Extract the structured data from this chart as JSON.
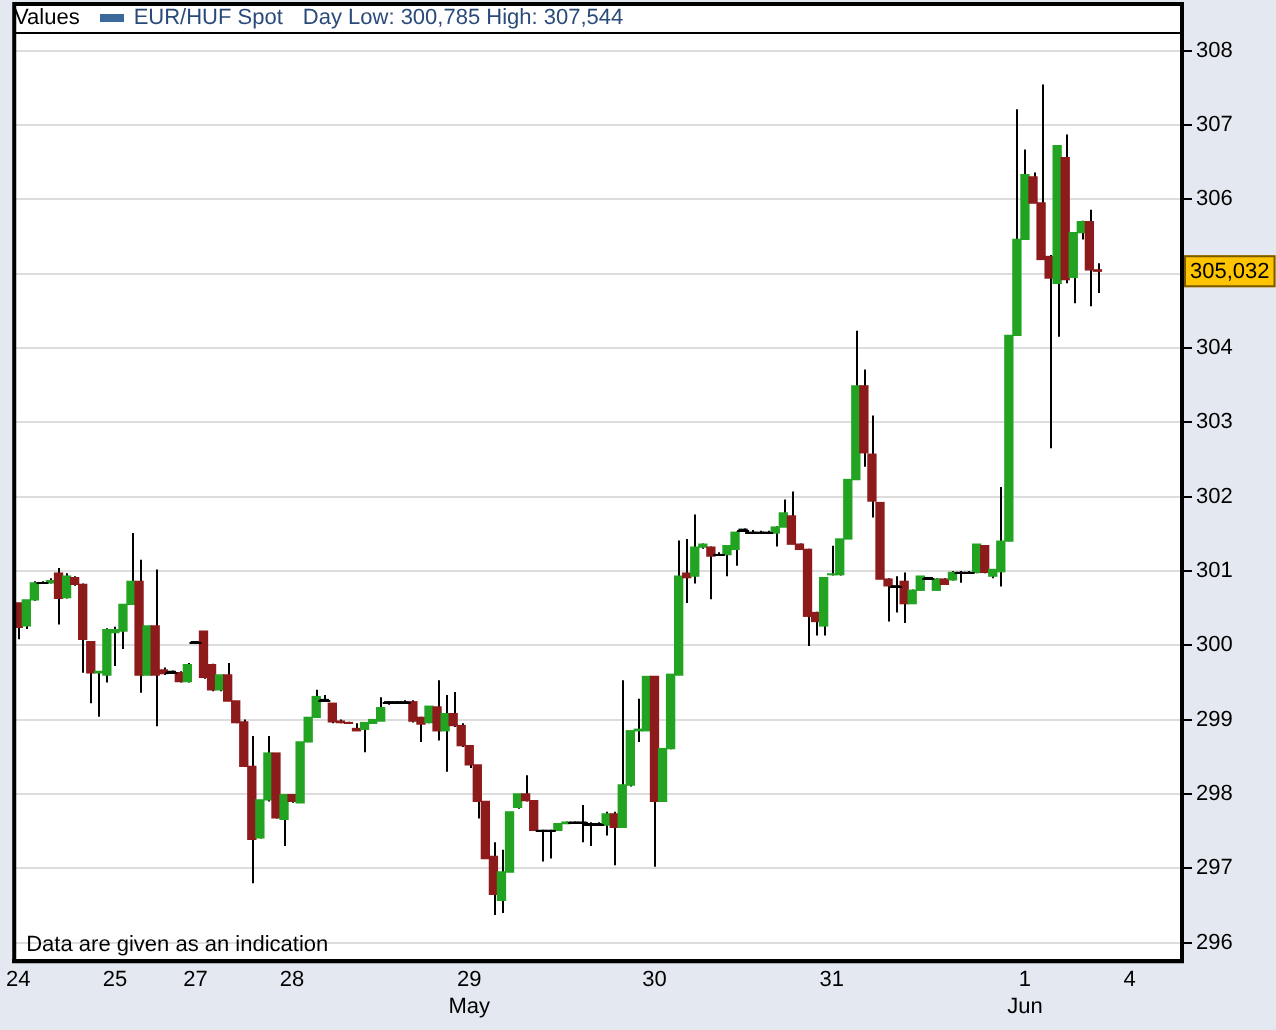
{
  "chart_data": {
    "type": "candlestick",
    "title": "Values",
    "subtitle": "Day Low: 300,785 High: 307,544",
    "legend": "top left",
    "grid": "y",
    "categories": [
      "24",
      null,
      null,
      null,
      null,
      null,
      null,
      null,
      null,
      null,
      null,
      null,
      "25",
      null,
      null,
      null,
      null,
      null,
      null,
      null,
      null,
      null,
      "27",
      null,
      null,
      null,
      null,
      null,
      null,
      null,
      null,
      null,
      null,
      null,
      "28",
      null,
      null,
      null,
      null,
      null,
      null,
      null,
      null,
      null,
      null,
      null,
      null,
      null,
      null,
      null,
      null,
      null,
      null,
      null,
      null,
      null,
      "29\nMay",
      null,
      null,
      null,
      null,
      null,
      null,
      null,
      null,
      null,
      null,
      null,
      null,
      null,
      null,
      null,
      null,
      null,
      null,
      null,
      null,
      null,
      null,
      "30",
      null,
      null,
      null,
      null,
      null,
      null,
      null,
      null,
      null,
      null,
      null,
      null,
      null,
      null,
      null,
      null,
      null,
      null,
      null,
      null,
      null,
      "31",
      null,
      null,
      null,
      null,
      null,
      null,
      null,
      null,
      null,
      null,
      null,
      null,
      null,
      null,
      null,
      null,
      null,
      null,
      null,
      null,
      null,
      null,
      null,
      "1\nJun",
      null,
      null,
      null,
      null,
      null,
      null,
      null,
      null,
      null,
      null,
      null,
      null,
      "4",
      null,
      null,
      null,
      null,
      null,
      null
    ],
    "ylim": [
      295.75,
      308.25
    ],
    "yticks": [
      296,
      297,
      298,
      299,
      300,
      301,
      302,
      303,
      304,
      {
        "value": 305,
        "label": null
      },
      306,
      307,
      308
    ],
    "annotations": [
      "Data are given as an indication"
    ],
    "series": [
      {
        "name": "EUR/HUF Spot",
        "color": "#3a6a9c",
        "ohlc": [
          [
            300.57,
            300.57,
            300.08,
            300.24
          ],
          [
            300.26,
            300.61,
            300.22,
            300.61
          ],
          [
            300.61,
            300.86,
            300.6,
            300.84
          ],
          [
            300.84,
            300.86,
            300.83,
            300.84
          ],
          [
            300.84,
            300.9,
            300.83,
            300.87
          ],
          [
            300.97,
            301.04,
            300.28,
            300.63
          ],
          [
            300.64,
            300.97,
            300.63,
            300.93
          ],
          [
            300.91,
            300.93,
            300.8,
            300.82
          ],
          [
            300.82,
            300.83,
            299.63,
            300.08
          ],
          [
            300.05,
            300.05,
            299.22,
            299.63
          ],
          [
            299.63,
            299.65,
            299.04,
            299.65
          ],
          [
            299.6,
            300.23,
            299.5,
            300.21
          ],
          [
            300.17,
            300.25,
            299.72,
            300.21
          ],
          [
            300.19,
            300.55,
            299.95,
            300.55
          ],
          [
            300.55,
            301.51,
            300.55,
            300.86
          ],
          [
            300.86,
            301.15,
            299.36,
            299.6
          ],
          [
            299.6,
            300.26,
            299.6,
            300.26
          ],
          [
            300.26,
            301.02,
            298.91,
            299.6
          ],
          [
            299.67,
            299.7,
            299.6,
            299.62
          ],
          [
            299.65,
            299.66,
            299.62,
            299.65
          ],
          [
            299.63,
            299.65,
            299.5,
            299.51
          ],
          [
            299.51,
            299.76,
            299.5,
            299.74
          ],
          [
            300.05,
            300.05,
            300.05,
            300.05
          ],
          [
            300.19,
            300.19,
            299.55,
            299.57
          ],
          [
            299.74,
            299.75,
            299.38,
            299.4
          ],
          [
            299.4,
            299.6,
            299.38,
            299.6
          ],
          [
            299.6,
            299.76,
            299.25,
            299.25
          ],
          [
            299.25,
            299.25,
            298.95,
            298.96
          ],
          [
            298.97,
            299.0,
            298.37,
            298.37
          ],
          [
            298.37,
            298.78,
            296.8,
            297.39
          ],
          [
            297.41,
            297.92,
            297.4,
            297.92
          ],
          [
            297.92,
            298.78,
            297.9,
            298.55
          ],
          [
            298.55,
            298.55,
            297.67,
            297.68
          ],
          [
            297.66,
            297.99,
            297.3,
            297.99
          ],
          [
            297.99,
            298.0,
            297.88,
            297.9
          ],
          [
            297.88,
            298.7,
            297.88,
            298.7
          ],
          [
            298.7,
            299.03,
            298.7,
            299.03
          ],
          [
            299.03,
            299.4,
            299.02,
            299.31
          ],
          [
            299.27,
            299.33,
            299.25,
            299.27
          ],
          [
            299.22,
            299.22,
            298.95,
            298.97
          ],
          [
            298.98,
            299.0,
            298.95,
            298.96
          ],
          [
            298.96,
            298.97,
            298.94,
            298.95
          ],
          [
            298.88,
            298.95,
            298.85,
            298.85
          ],
          [
            298.87,
            298.96,
            298.56,
            298.96
          ],
          [
            298.95,
            299.0,
            298.94,
            299.0
          ],
          [
            298.98,
            299.3,
            298.98,
            299.16
          ],
          [
            299.24,
            299.25,
            299.2,
            299.24
          ],
          [
            299.24,
            299.25,
            299.22,
            299.24
          ],
          [
            299.24,
            299.26,
            299.22,
            299.24
          ],
          [
            299.24,
            299.26,
            298.96,
            298.98
          ],
          [
            299.03,
            299.04,
            298.7,
            298.94
          ],
          [
            298.96,
            299.18,
            298.95,
            299.18
          ],
          [
            299.17,
            299.53,
            298.72,
            298.85
          ],
          [
            298.85,
            299.33,
            298.3,
            299.08
          ],
          [
            299.08,
            299.37,
            298.9,
            298.92
          ],
          [
            298.92,
            298.95,
            298.63,
            298.65
          ],
          [
            298.65,
            298.65,
            298.35,
            298.39
          ],
          [
            298.39,
            298.39,
            297.67,
            297.9
          ],
          [
            297.9,
            297.9,
            297.13,
            297.13
          ],
          [
            297.16,
            297.35,
            296.37,
            296.65
          ],
          [
            296.57,
            297.25,
            296.4,
            296.95
          ],
          [
            296.95,
            297.76,
            296.95,
            297.76
          ],
          [
            297.82,
            298.0,
            297.8,
            298.0
          ],
          [
            298.0,
            298.25,
            297.9,
            297.91
          ],
          [
            297.91,
            297.92,
            297.5,
            297.51
          ],
          [
            297.51,
            297.52,
            297.09,
            297.51
          ],
          [
            297.51,
            297.52,
            297.13,
            297.51
          ],
          [
            297.51,
            297.6,
            297.5,
            297.6
          ],
          [
            297.6,
            297.63,
            297.6,
            297.62
          ],
          [
            297.62,
            297.63,
            297.6,
            297.62
          ],
          [
            297.62,
            297.85,
            297.35,
            297.62
          ],
          [
            297.6,
            297.62,
            297.3,
            297.6
          ],
          [
            297.6,
            297.62,
            297.58,
            297.6
          ],
          [
            297.58,
            297.76,
            297.44,
            297.73
          ],
          [
            297.73,
            297.76,
            297.04,
            297.55
          ],
          [
            297.55,
            299.53,
            297.55,
            298.12
          ],
          [
            298.12,
            298.85,
            298.1,
            298.85
          ],
          [
            298.85,
            299.28,
            298.7,
            298.87
          ],
          [
            298.85,
            299.58,
            298.85,
            299.58
          ],
          [
            299.58,
            299.58,
            297.02,
            297.9
          ],
          [
            297.9,
            298.61,
            297.9,
            298.61
          ],
          [
            298.61,
            299.61,
            298.6,
            299.61
          ],
          [
            299.6,
            301.41,
            299.6,
            300.93
          ],
          [
            300.97,
            301.43,
            300.57,
            300.91
          ],
          [
            300.93,
            301.76,
            300.83,
            301.32
          ],
          [
            301.32,
            301.37,
            301.3,
            301.36
          ],
          [
            301.32,
            301.33,
            300.62,
            301.2
          ],
          [
            301.22,
            301.25,
            301.2,
            301.22
          ],
          [
            301.22,
            301.35,
            300.93,
            301.34
          ],
          [
            301.29,
            301.53,
            301.07,
            301.52
          ],
          [
            301.56,
            301.57,
            301.55,
            301.56
          ],
          [
            301.52,
            301.55,
            301.5,
            301.52
          ],
          [
            301.52,
            301.54,
            301.5,
            301.52
          ],
          [
            301.52,
            301.54,
            301.5,
            301.52
          ],
          [
            301.51,
            301.6,
            301.33,
            301.59
          ],
          [
            301.59,
            301.96,
            301.59,
            301.78
          ],
          [
            301.74,
            302.07,
            301.36,
            301.36
          ],
          [
            301.36,
            301.37,
            301.29,
            301.29
          ],
          [
            301.29,
            301.3,
            299.99,
            300.39
          ],
          [
            300.44,
            300.45,
            300.13,
            300.32
          ],
          [
            300.26,
            300.92,
            300.13,
            300.91
          ],
          [
            300.95,
            301.34,
            300.94,
            300.96
          ],
          [
            300.95,
            301.43,
            300.94,
            301.43
          ],
          [
            301.43,
            302.23,
            301.43,
            302.23
          ],
          [
            302.23,
            304.23,
            302.23,
            303.49
          ],
          [
            303.49,
            303.71,
            302.4,
            302.59
          ],
          [
            302.57,
            303.09,
            301.72,
            301.94
          ],
          [
            301.92,
            301.92,
            300.89,
            300.89
          ],
          [
            300.89,
            300.9,
            300.32,
            300.8
          ],
          [
            300.8,
            300.93,
            300.44,
            300.8
          ],
          [
            300.86,
            300.98,
            300.3,
            300.56
          ],
          [
            300.56,
            300.75,
            300.56,
            300.74
          ],
          [
            300.74,
            300.93,
            300.74,
            300.93
          ],
          [
            300.91,
            300.92,
            300.9,
            300.91
          ],
          [
            300.74,
            300.9,
            300.74,
            300.89
          ],
          [
            300.89,
            300.9,
            300.82,
            300.82
          ],
          [
            300.88,
            301.0,
            300.87,
            300.98
          ],
          [
            300.98,
            301.0,
            300.84,
            300.98
          ],
          [
            300.98,
            301.0,
            300.96,
            300.98
          ],
          [
            300.98,
            301.36,
            300.97,
            301.36
          ],
          [
            301.34,
            301.35,
            300.97,
            300.98
          ],
          [
            300.93,
            301.02,
            300.9,
            301.02
          ],
          [
            300.99,
            302.13,
            300.79,
            301.4
          ],
          [
            301.4,
            304.17,
            301.4,
            304.17
          ],
          [
            304.17,
            307.21,
            304.17,
            305.46
          ],
          [
            305.46,
            306.67,
            305.46,
            306.33
          ],
          [
            306.3,
            306.36,
            305.95,
            305.95
          ],
          [
            305.95,
            307.544,
            305.19,
            305.19
          ],
          [
            305.23,
            305.25,
            302.65,
            304.94
          ],
          [
            304.87,
            306.72,
            304.15,
            306.72
          ],
          [
            306.56,
            306.87,
            304.87,
            304.92
          ],
          [
            304.95,
            305.55,
            304.6,
            305.55
          ],
          [
            305.55,
            305.71,
            305.46,
            305.7
          ],
          [
            305.7,
            305.86,
            304.56,
            305.05
          ],
          [
            305.05,
            305.14,
            304.74,
            305.032
          ],
          null,
          null,
          null,
          null,
          null,
          null,
          null,
          null,
          null,
          null
        ],
        "colors": [
          "#8e1b1b",
          "#22a422",
          "#22a422",
          "#000000",
          "#22a422",
          "#8e1b1b",
          "#22a422",
          "#8e1b1b",
          "#8e1b1b",
          "#8e1b1b",
          "#22a422",
          "#22a422",
          "#22a422",
          "#22a422",
          "#22a422",
          "#8e1b1b",
          "#22a422",
          "#8e1b1b",
          "#8e1b1b",
          "#000000",
          "#8e1b1b",
          "#22a422",
          "#000000",
          "#8e1b1b",
          "#8e1b1b",
          "#22a422",
          "#8e1b1b",
          "#8e1b1b",
          "#8e1b1b",
          "#8e1b1b",
          "#22a422",
          "#22a422",
          "#8e1b1b",
          "#22a422",
          "#8e1b1b",
          "#22a422",
          "#22a422",
          "#22a422",
          "#000000",
          "#8e1b1b",
          "#8e1b1b",
          "#8e1b1b",
          "#8e1b1b",
          "#22a422",
          "#22a422",
          "#22a422",
          "#000000",
          "#000000",
          "#000000",
          "#8e1b1b",
          "#8e1b1b",
          "#22a422",
          "#8e1b1b",
          "#22a422",
          "#8e1b1b",
          "#8e1b1b",
          "#8e1b1b",
          "#8e1b1b",
          "#8e1b1b",
          "#8e1b1b",
          "#22a422",
          "#22a422",
          "#22a422",
          "#8e1b1b",
          "#8e1b1b",
          "#000000",
          "#000000",
          "#22a422",
          "#22a422",
          "#000000",
          "#000000",
          "#000000",
          "#000000",
          "#22a422",
          "#8e1b1b",
          "#22a422",
          "#22a422",
          "#22a422",
          "#22a422",
          "#8e1b1b",
          "#22a422",
          "#22a422",
          "#22a422",
          "#8e1b1b",
          "#22a422",
          "#22a422",
          "#8e1b1b",
          "#000000",
          "#22a422",
          "#22a422",
          "#000000",
          "#000000",
          "#000000",
          "#000000",
          "#22a422",
          "#22a422",
          "#8e1b1b",
          "#8e1b1b",
          "#8e1b1b",
          "#8e1b1b",
          "#22a422",
          "#22a422",
          "#22a422",
          "#22a422",
          "#22a422",
          "#8e1b1b",
          "#8e1b1b",
          "#8e1b1b",
          "#8e1b1b",
          "#000000",
          "#8e1b1b",
          "#22a422",
          "#22a422",
          "#000000",
          "#22a422",
          "#8e1b1b",
          "#22a422",
          "#000000",
          "#000000",
          "#22a422",
          "#8e1b1b",
          "#22a422",
          "#22a422",
          "#22a422",
          "#22a422",
          "#22a422",
          "#8e1b1b",
          "#8e1b1b",
          "#8e1b1b",
          "#22a422",
          "#8e1b1b",
          "#22a422",
          "#22a422",
          "#8e1b1b",
          "#8e1b1b",
          null,
          null,
          null,
          null,
          null,
          null,
          null,
          null,
          null,
          null
        ],
        "value_labels": [
          null,
          null,
          null,
          null,
          null,
          null,
          null,
          null,
          null,
          null,
          null,
          null,
          null,
          null,
          null,
          null,
          null,
          null,
          null,
          null,
          null,
          null,
          null,
          null,
          null,
          null,
          null,
          null,
          null,
          null,
          null,
          null,
          null,
          null,
          null,
          null,
          null,
          null,
          null,
          null,
          null,
          null,
          null,
          null,
          null,
          null,
          null,
          null,
          null,
          null,
          null,
          null,
          null,
          null,
          null,
          null,
          null,
          null,
          null,
          null,
          null,
          null,
          null,
          null,
          null,
          null,
          null,
          null,
          null,
          null,
          null,
          null,
          null,
          null,
          null,
          null,
          null,
          null,
          null,
          null,
          null,
          null,
          null,
          null,
          null,
          null,
          null,
          null,
          null,
          null,
          null,
          null,
          null,
          null,
          null,
          null,
          null,
          null,
          null,
          null,
          null,
          null,
          null,
          null,
          null,
          null,
          null,
          null,
          null,
          null,
          null,
          null,
          null,
          null,
          null,
          null,
          null,
          null,
          null,
          null,
          null,
          null,
          null,
          null,
          null,
          null,
          null,
          null,
          null,
          null,
          null,
          null,
          null,
          null,
          "305,032",
          null,
          null,
          null,
          null,
          null,
          null,
          null,
          null,
          null,
          null
        ]
      }
    ]
  }
}
